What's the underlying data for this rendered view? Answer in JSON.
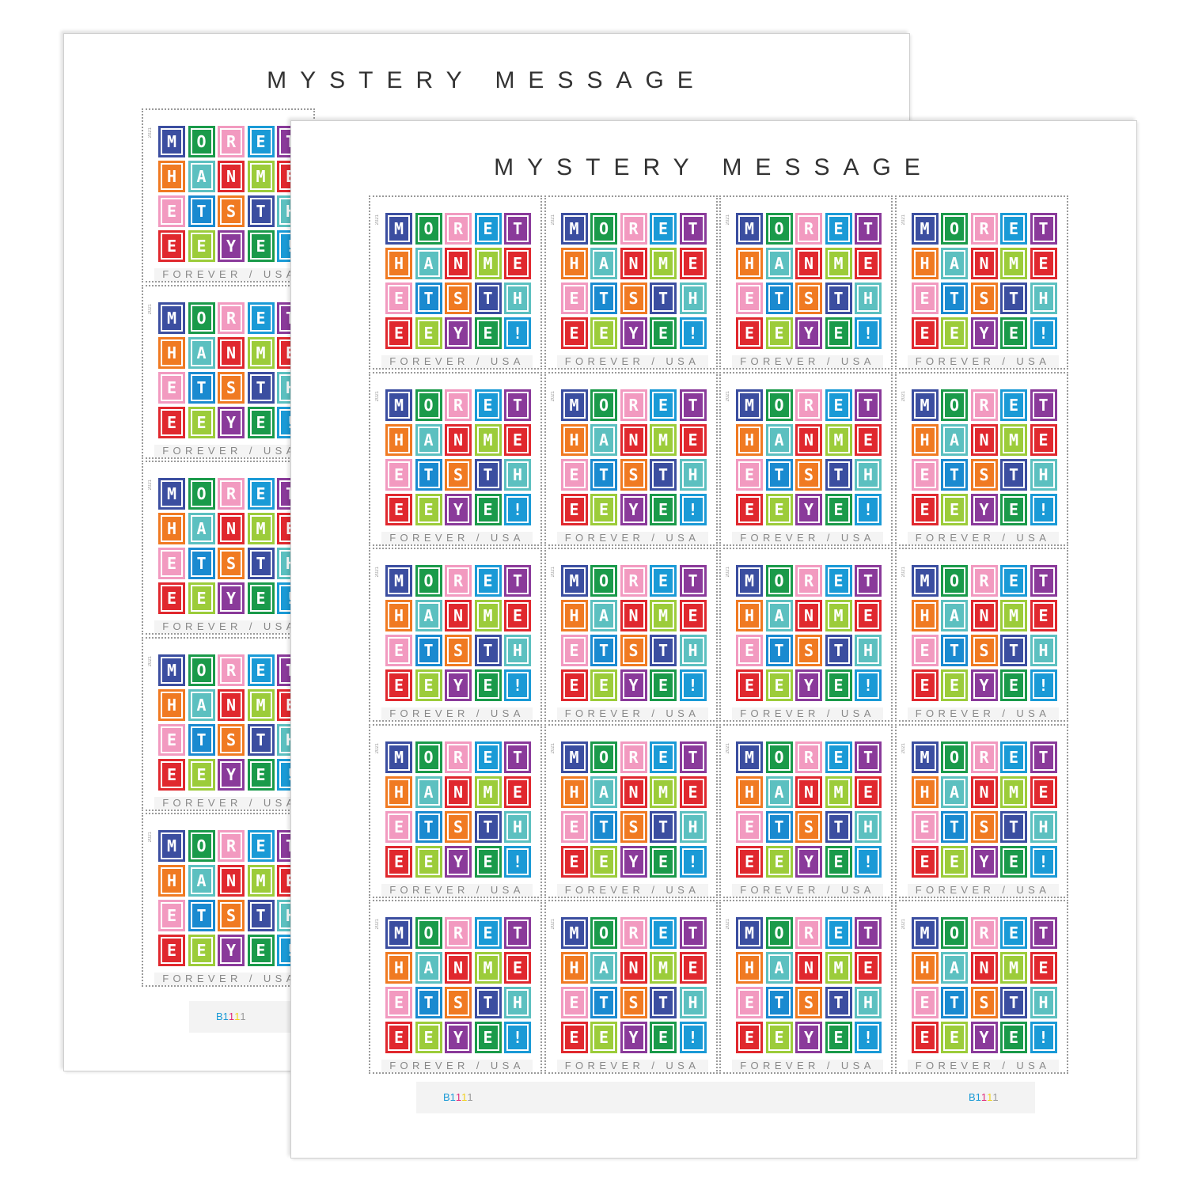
{
  "sheet": {
    "title": "MYSTERY MESSAGE",
    "rows": 5,
    "columns": 4,
    "plate_number": "B1111",
    "plate_colors": [
      "#1a9ad6",
      "#1a9ad6",
      "#e0287a",
      "#f2d21a",
      "#999999"
    ]
  },
  "stamp": {
    "year": "2021",
    "denomination": "FOREVER / USA",
    "tiles": [
      {
        "letter": "M",
        "color": "#3b4ea0"
      },
      {
        "letter": "O",
        "color": "#1a9a4a"
      },
      {
        "letter": "R",
        "color": "#f29ac0"
      },
      {
        "letter": "E",
        "color": "#1a9ad6"
      },
      {
        "letter": "T",
        "color": "#8a3a9a"
      },
      {
        "letter": "H",
        "color": "#f07a22"
      },
      {
        "letter": "A",
        "color": "#5cc0c0"
      },
      {
        "letter": "N",
        "color": "#e0282e"
      },
      {
        "letter": "M",
        "color": "#9ccc3a"
      },
      {
        "letter": "E",
        "color": "#e0282e"
      },
      {
        "letter": "E",
        "color": "#f29ac0"
      },
      {
        "letter": "T",
        "color": "#1a8ad0"
      },
      {
        "letter": "S",
        "color": "#f07a22"
      },
      {
        "letter": "T",
        "color": "#3b4ea0"
      },
      {
        "letter": "H",
        "color": "#5cc0c0"
      },
      {
        "letter": "E",
        "color": "#e0282e"
      },
      {
        "letter": "E",
        "color": "#9ccc3a"
      },
      {
        "letter": "Y",
        "color": "#8a3a9a"
      },
      {
        "letter": "E",
        "color": "#1a9a4a"
      },
      {
        "letter": "!",
        "color": "#1a9ad6"
      }
    ]
  }
}
